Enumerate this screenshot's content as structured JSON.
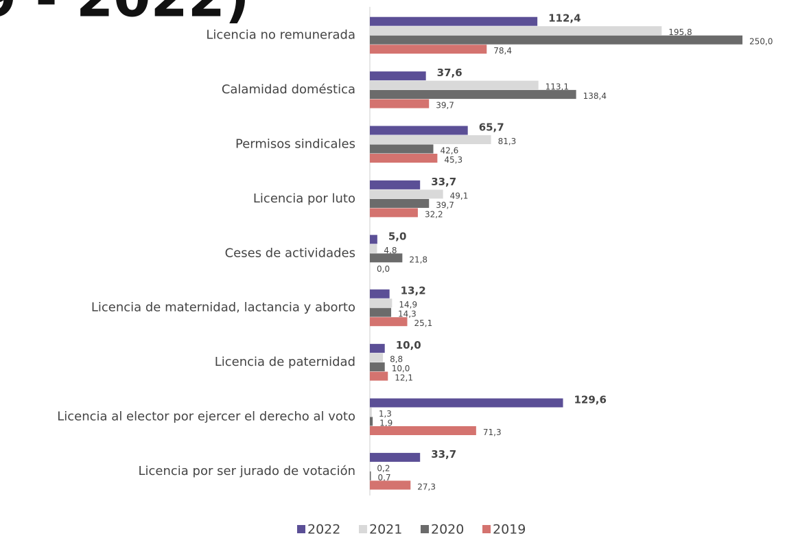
{
  "chart_data": {
    "type": "hbar",
    "title": "9 - 2022)",
    "categories": [
      "Licencia no remunerada",
      "Calamidad doméstica",
      "Permisos sindicales",
      "Licencia por luto",
      "Ceses de actividades",
      "Licencia de maternidad, lactancia y aborto",
      "Licencia de paternidad",
      "Licencia al elector por ejercer el derecho al voto",
      "Licencia por ser jurado de votación"
    ],
    "xlim": [
      0,
      250
    ],
    "series": [
      {
        "name": "2022",
        "color": "#5b4f96",
        "values": [
          112.4,
          37.6,
          65.7,
          33.7,
          5.0,
          13.2,
          10.0,
          129.6,
          33.7
        ],
        "value_labels": [
          "112,4",
          "37,6",
          "65,7",
          "33,7",
          "5,0",
          "13,2",
          "10,0",
          "129,6",
          "33,7"
        ]
      },
      {
        "name": "2021",
        "color": "#d9d9d9",
        "values": [
          195.8,
          113.1,
          81.3,
          49.1,
          4.8,
          14.9,
          8.8,
          1.3,
          0.2
        ],
        "value_labels": [
          "195,8",
          "113,1",
          "81,3",
          "49,1",
          "4,8",
          "14,9",
          "8,8",
          "1,3",
          "0,2"
        ]
      },
      {
        "name": "2020",
        "color": "#6b6b6b",
        "values": [
          250.0,
          138.4,
          42.6,
          39.7,
          21.8,
          14.3,
          10.0,
          1.9,
          0.7
        ],
        "value_labels": [
          "250,0",
          "138,4",
          "42,6",
          "39,7",
          "21,8",
          "14,3",
          "10,0",
          "1,9",
          "0,7"
        ]
      },
      {
        "name": "2019",
        "color": "#d4736f",
        "values": [
          78.4,
          39.7,
          45.3,
          32.2,
          0.0,
          25.1,
          12.1,
          71.3,
          27.3
        ],
        "value_labels": [
          "78,4",
          "39,7",
          "45,3",
          "32,2",
          "0,0",
          "25,1",
          "12,1",
          "71,3",
          "27,3"
        ]
      }
    ]
  }
}
